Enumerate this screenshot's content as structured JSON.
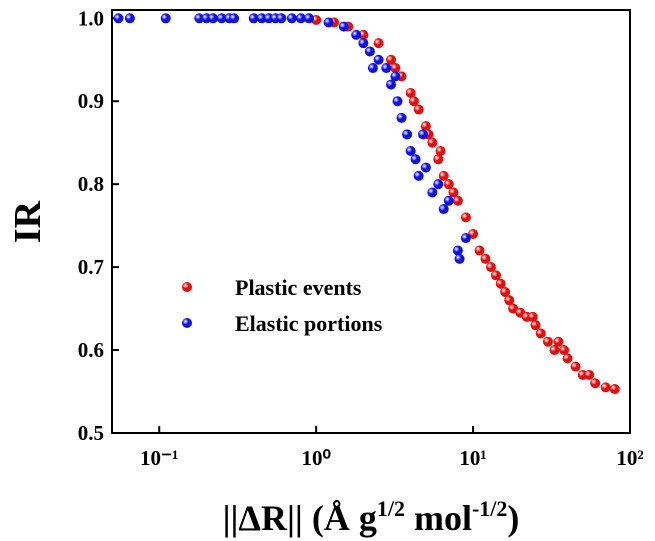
{
  "chart_data": {
    "type": "scatter",
    "y_label": "IR",
    "x_label": [
      "||ΔR|| (Å g",
      "1/2",
      " mol",
      "-1/2",
      ")"
    ],
    "xscale": "log",
    "xlim": [
      0.05,
      100
    ],
    "ylim": [
      0.5,
      1.01
    ],
    "xticks": [
      {
        "value": 0.1,
        "label": "10⁻¹"
      },
      {
        "value": 1,
        "label": "10⁰"
      },
      {
        "value": 10,
        "label": "10¹"
      },
      {
        "value": 100,
        "label": "10²"
      }
    ],
    "yticks": [
      0.5,
      0.6,
      0.7,
      0.8,
      0.9,
      {
        "value": 1,
        "label": "1.0"
      }
    ],
    "legend": "lower-left",
    "series": [
      {
        "name": "Plastic events",
        "color": "#e01010",
        "x": [
          1.0,
          1.3,
          1.6,
          2,
          2.5,
          3,
          3.5,
          4,
          4.5,
          5,
          5.5,
          6,
          6.5,
          7,
          8,
          9,
          10,
          11,
          12,
          13,
          14,
          15,
          17,
          18,
          20,
          22,
          25,
          27,
          30,
          33,
          38,
          40,
          45,
          50,
          55,
          60,
          70,
          80,
          3.2,
          4.2,
          5.2,
          6.2,
          7.5,
          16,
          24,
          35
        ],
        "values": [
          0.998,
          0.995,
          0.99,
          0.98,
          0.97,
          0.95,
          0.93,
          0.91,
          0.89,
          0.87,
          0.85,
          0.83,
          0.81,
          0.8,
          0.78,
          0.76,
          0.74,
          0.72,
          0.71,
          0.7,
          0.69,
          0.68,
          0.66,
          0.65,
          0.645,
          0.64,
          0.63,
          0.62,
          0.61,
          0.6,
          0.6,
          0.59,
          0.58,
          0.57,
          0.57,
          0.56,
          0.555,
          0.553,
          0.94,
          0.9,
          0.86,
          0.84,
          0.79,
          0.67,
          0.64,
          0.61
        ]
      },
      {
        "name": "Elastic portions",
        "color": "#1010e0",
        "x": [
          0.055,
          0.065,
          0.11,
          0.18,
          0.2,
          0.22,
          0.25,
          0.28,
          0.3,
          0.4,
          0.45,
          0.5,
          0.55,
          0.6,
          0.7,
          0.8,
          0.9,
          1.2,
          1.5,
          1.8,
          2.0,
          2.2,
          2.5,
          2.8,
          3.0,
          3.3,
          3.5,
          3.8,
          4.0,
          4.3,
          4.5,
          5.0,
          5.5,
          6,
          6.5,
          7,
          8,
          8.2,
          9,
          2.3,
          3.2,
          4.8
        ],
        "values": [
          1,
          1,
          1,
          1,
          1,
          1,
          1,
          1,
          1,
          1,
          1,
          1,
          1,
          1,
          1,
          1,
          1,
          0.995,
          0.99,
          0.98,
          0.97,
          0.96,
          0.95,
          0.94,
          0.92,
          0.9,
          0.88,
          0.86,
          0.84,
          0.83,
          0.81,
          0.82,
          0.79,
          0.8,
          0.77,
          0.78,
          0.72,
          0.71,
          0.735,
          0.94,
          0.93,
          0.86
        ]
      }
    ]
  }
}
